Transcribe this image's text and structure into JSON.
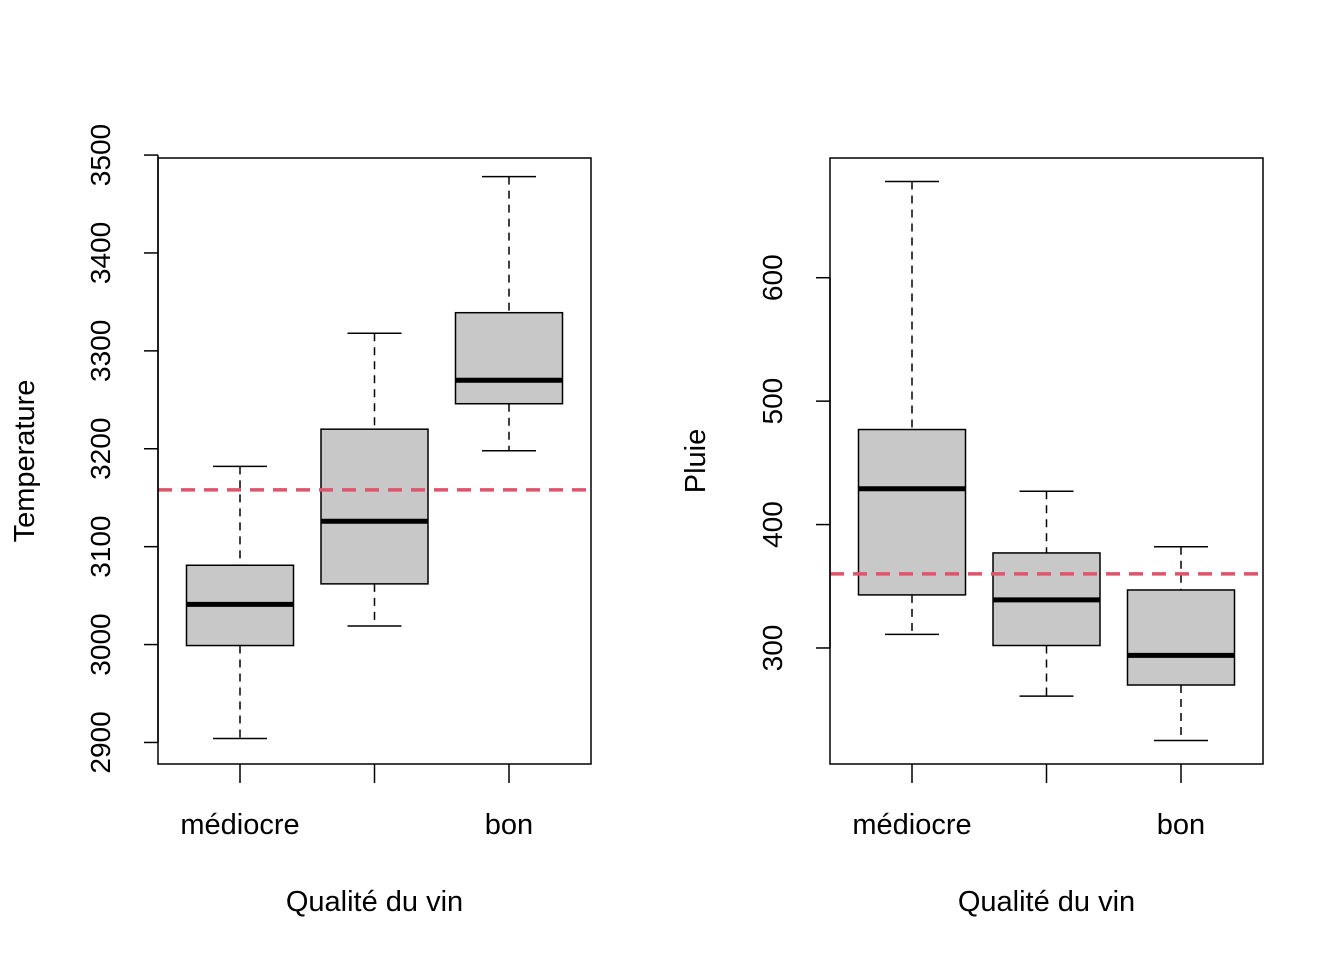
{
  "chart_data": [
    {
      "type": "boxplot",
      "xlabel": "Qualité du vin",
      "ylabel": "Temperature",
      "ylim": [
        2878,
        3497
      ],
      "yticks": [
        2900,
        3000,
        3100,
        3200,
        3300,
        3400,
        3500
      ],
      "categories": [
        "médiocre",
        "",
        "bon"
      ],
      "boxes": [
        {
          "whisker_low": 2904,
          "q1": 2999,
          "median": 3041,
          "q3": 3081,
          "whisker_high": 3182
        },
        {
          "whisker_low": 3019,
          "q1": 3062,
          "median": 3126,
          "q3": 3220,
          "whisker_high": 3318
        },
        {
          "whisker_low": 3198,
          "q1": 3246,
          "median": 3270,
          "q3": 3339,
          "whisker_high": 3478
        }
      ],
      "reference_line": {
        "value": 3158,
        "color": "#DF536B",
        "style": "dashed"
      },
      "box_fill": "#C8C8C8"
    },
    {
      "type": "boxplot",
      "xlabel": "Qualité du vin",
      "ylabel": "Pluie",
      "ylim": [
        206,
        697
      ],
      "yticks": [
        300,
        400,
        500,
        600
      ],
      "categories": [
        "médiocre",
        "",
        "bon"
      ],
      "boxes": [
        {
          "whisker_low": 311,
          "q1": 343,
          "median": 429,
          "q3": 477,
          "whisker_high": 678
        },
        {
          "whisker_low": 261,
          "q1": 302,
          "median": 339,
          "q3": 377,
          "whisker_high": 427
        },
        {
          "whisker_low": 225,
          "q1": 270,
          "median": 294,
          "q3": 347,
          "whisker_high": 382
        }
      ],
      "reference_line": {
        "value": 360,
        "color": "#DF536B",
        "style": "dashed"
      },
      "box_fill": "#C8C8C8"
    }
  ]
}
